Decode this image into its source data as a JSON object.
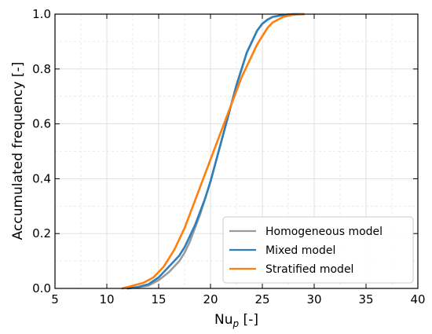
{
  "chart_data": {
    "type": "line",
    "xlabel_main": "Nu",
    "xlabel_sub": "p",
    "xlabel_unit": " [-]",
    "ylabel": "Accumulated frequency [-]",
    "xlim": [
      5,
      40
    ],
    "ylim": [
      0,
      1
    ],
    "xticks": [
      5,
      10,
      15,
      20,
      25,
      30,
      35,
      40
    ],
    "yticks": [
      0.0,
      0.2,
      0.4,
      0.6,
      0.8,
      1.0
    ],
    "xtick_labels": [
      "5",
      "10",
      "15",
      "20",
      "25",
      "30",
      "35",
      "40"
    ],
    "ytick_labels": [
      "0.0",
      "0.2",
      "0.4",
      "0.6",
      "0.8",
      "1.0"
    ],
    "grid": true,
    "legend_position": "lower-right",
    "series": [
      {
        "name": "Homogeneous model",
        "color": "#9a9a9a",
        "x": [
          12.0,
          13.0,
          14.0,
          15.0,
          16.0,
          17.0,
          17.5,
          18.0,
          18.5,
          19.0,
          19.5,
          20.0,
          20.5,
          21.0,
          21.5,
          22.0,
          22.5,
          23.0,
          23.5,
          24.0,
          24.5,
          25.0,
          25.5,
          26.0,
          27.0,
          28.0,
          29.0
        ],
        "y": [
          0.0,
          0.005,
          0.01,
          0.03,
          0.06,
          0.1,
          0.13,
          0.17,
          0.22,
          0.27,
          0.33,
          0.39,
          0.46,
          0.53,
          0.6,
          0.67,
          0.74,
          0.8,
          0.86,
          0.9,
          0.94,
          0.965,
          0.98,
          0.99,
          0.997,
          1.0,
          1.0
        ]
      },
      {
        "name": "Mixed model",
        "color": "#2f7fbb",
        "x": [
          12.0,
          13.0,
          14.0,
          15.0,
          16.0,
          17.0,
          17.5,
          18.0,
          18.5,
          19.0,
          19.5,
          20.0,
          20.5,
          21.0,
          21.5,
          22.0,
          22.5,
          23.0,
          23.5,
          24.0,
          24.5,
          25.0,
          25.5,
          26.0,
          27.0,
          28.0,
          29.0
        ],
        "y": [
          0.0,
          0.005,
          0.015,
          0.04,
          0.08,
          0.12,
          0.15,
          0.19,
          0.23,
          0.28,
          0.33,
          0.39,
          0.46,
          0.53,
          0.6,
          0.67,
          0.74,
          0.8,
          0.86,
          0.9,
          0.94,
          0.965,
          0.98,
          0.99,
          0.997,
          1.0,
          1.0
        ]
      },
      {
        "name": "Stratified model",
        "color": "#ff7f0e",
        "x": [
          11.5,
          12.5,
          13.5,
          14.5,
          15.5,
          16.5,
          17.0,
          17.5,
          18.0,
          18.5,
          19.0,
          19.5,
          20.0,
          20.5,
          21.0,
          21.5,
          22.0,
          22.5,
          23.0,
          23.5,
          24.0,
          24.5,
          25.0,
          25.5,
          26.0,
          26.5,
          27.0,
          28.0,
          29.0
        ],
        "y": [
          0.0,
          0.01,
          0.02,
          0.04,
          0.08,
          0.14,
          0.18,
          0.22,
          0.27,
          0.32,
          0.37,
          0.42,
          0.47,
          0.52,
          0.57,
          0.62,
          0.67,
          0.72,
          0.77,
          0.81,
          0.85,
          0.89,
          0.92,
          0.95,
          0.97,
          0.98,
          0.99,
          0.998,
          1.0
        ]
      }
    ]
  }
}
